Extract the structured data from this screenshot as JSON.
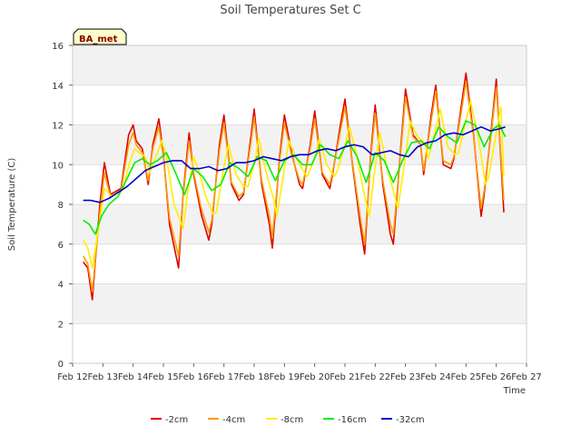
{
  "chart_data": {
    "type": "line",
    "title": "Soil Temperatures Set C",
    "badge": "BA_met",
    "xlabel": "Time",
    "ylabel": "Soil Temperature (C)",
    "ylim": [
      0,
      16
    ],
    "yticks": [
      0,
      2,
      4,
      6,
      8,
      10,
      12,
      14,
      16
    ],
    "xlim": [
      12,
      27
    ],
    "xticks": [
      {
        "value": 12,
        "label": "Feb 12"
      },
      {
        "value": 13,
        "label": "Feb 13"
      },
      {
        "value": 14,
        "label": "Feb 14"
      },
      {
        "value": 15,
        "label": "Feb 15"
      },
      {
        "value": 16,
        "label": "Feb 16"
      },
      {
        "value": 17,
        "label": "Feb 17"
      },
      {
        "value": 18,
        "label": "Feb 18"
      },
      {
        "value": 19,
        "label": "Feb 19"
      },
      {
        "value": 20,
        "label": "Feb 20"
      },
      {
        "value": 21,
        "label": "Feb 21"
      },
      {
        "value": 22,
        "label": "Feb 22"
      },
      {
        "value": 23,
        "label": "Feb 23"
      },
      {
        "value": 24,
        "label": "Feb 24"
      },
      {
        "value": 25,
        "label": "Feb 25"
      },
      {
        "value": 26,
        "label": "Feb 26"
      },
      {
        "value": 27,
        "label": "Feb 27"
      }
    ],
    "grid": "horizontal bands",
    "legend_position": "bottom",
    "series": [
      {
        "name": "-2cm",
        "color": "#dd0000",
        "x": [
          12.35,
          12.5,
          12.65,
          12.9,
          13.05,
          13.25,
          13.6,
          13.85,
          14.0,
          14.1,
          14.3,
          14.5,
          14.65,
          14.85,
          15.0,
          15.2,
          15.5,
          15.65,
          15.85,
          16.0,
          16.25,
          16.5,
          16.6,
          16.85,
          17.0,
          17.25,
          17.5,
          17.65,
          17.9,
          18.0,
          18.25,
          18.5,
          18.6,
          18.85,
          19.0,
          19.25,
          19.5,
          19.6,
          19.85,
          20.0,
          20.25,
          20.5,
          20.6,
          20.85,
          21.0,
          21.25,
          21.5,
          21.65,
          21.85,
          22.0,
          22.25,
          22.5,
          22.6,
          22.85,
          23.0,
          23.25,
          23.5,
          23.6,
          23.85,
          24.0,
          24.25,
          24.5,
          24.6,
          24.85,
          25.0,
          25.25,
          25.5,
          25.6,
          25.85,
          26.0,
          26.25
        ],
        "y": [
          5.1,
          4.8,
          3.2,
          8.0,
          10.1,
          8.5,
          8.8,
          11.5,
          12.0,
          11.2,
          10.8,
          9.0,
          11.0,
          12.3,
          10.5,
          7.0,
          4.8,
          8.5,
          11.6,
          9.5,
          7.5,
          6.2,
          7.0,
          11.0,
          12.5,
          9.0,
          8.2,
          8.5,
          11.5,
          12.8,
          9.0,
          7.0,
          5.8,
          10.5,
          12.5,
          10.5,
          9.0,
          8.8,
          11.0,
          12.7,
          9.5,
          8.8,
          9.6,
          12.0,
          13.3,
          10.0,
          7.0,
          5.5,
          10.5,
          13.0,
          9.0,
          6.5,
          6.0,
          11.0,
          13.8,
          11.5,
          11.0,
          9.5,
          12.5,
          14.0,
          10.0,
          9.8,
          10.3,
          13.0,
          14.6,
          11.5,
          7.4,
          8.5,
          12.0,
          14.3,
          7.6
        ]
      },
      {
        "name": "-4cm",
        "color": "#ff9900",
        "x": [
          12.35,
          12.5,
          12.65,
          12.9,
          13.05,
          13.25,
          13.6,
          13.85,
          14.0,
          14.1,
          14.3,
          14.5,
          14.65,
          14.85,
          15.0,
          15.2,
          15.5,
          15.65,
          15.85,
          16.0,
          16.25,
          16.5,
          16.6,
          16.85,
          17.0,
          17.25,
          17.5,
          17.65,
          17.9,
          18.0,
          18.25,
          18.5,
          18.6,
          18.85,
          19.0,
          19.25,
          19.5,
          19.6,
          19.85,
          20.0,
          20.25,
          20.5,
          20.6,
          20.85,
          21.0,
          21.25,
          21.5,
          21.65,
          21.85,
          22.0,
          22.25,
          22.5,
          22.6,
          22.85,
          23.0,
          23.25,
          23.5,
          23.6,
          23.85,
          24.0,
          24.25,
          24.5,
          24.6,
          24.85,
          25.0,
          25.25,
          25.5,
          25.6,
          25.85,
          26.0,
          26.25
        ],
        "y": [
          5.4,
          5.0,
          3.6,
          7.6,
          9.6,
          8.4,
          8.7,
          11.0,
          11.6,
          11.0,
          10.6,
          9.2,
          10.8,
          11.9,
          10.4,
          7.3,
          5.4,
          8.4,
          11.2,
          9.6,
          7.8,
          6.6,
          7.2,
          10.7,
          12.1,
          9.1,
          8.4,
          8.6,
          11.2,
          12.4,
          9.2,
          7.4,
          6.3,
          10.3,
          12.1,
          10.4,
          9.2,
          9.0,
          10.8,
          12.3,
          9.6,
          9.0,
          9.7,
          11.7,
          12.9,
          10.1,
          7.4,
          6.0,
          10.3,
          12.6,
          9.2,
          7.0,
          6.5,
          10.8,
          13.4,
          11.4,
          11.0,
          9.7,
          12.2,
          13.7,
          10.2,
          10.0,
          10.4,
          12.7,
          14.2,
          11.4,
          7.8,
          8.7,
          11.8,
          13.9,
          8.2
        ]
      },
      {
        "name": "-8cm",
        "color": "#ffee00",
        "x": [
          12.35,
          12.5,
          12.65,
          12.9,
          13.05,
          13.3,
          13.65,
          13.9,
          14.05,
          14.2,
          14.4,
          14.55,
          14.75,
          14.95,
          15.1,
          15.35,
          15.65,
          15.8,
          16.0,
          16.15,
          16.4,
          16.65,
          16.75,
          17.0,
          17.15,
          17.4,
          17.65,
          17.8,
          18.05,
          18.15,
          18.4,
          18.65,
          18.75,
          19.0,
          19.15,
          19.4,
          19.65,
          19.75,
          20.0,
          20.15,
          20.4,
          20.65,
          20.75,
          21.0,
          21.15,
          21.4,
          21.65,
          21.8,
          22.0,
          22.15,
          22.4,
          22.65,
          22.75,
          23.0,
          23.15,
          23.4,
          23.65,
          23.75,
          24.0,
          24.15,
          24.4,
          24.65,
          24.75,
          25.0,
          25.15,
          25.4,
          25.65,
          25.75,
          26.0,
          26.15,
          26.25
        ],
        "y": [
          6.2,
          5.8,
          4.8,
          7.2,
          8.8,
          8.4,
          8.7,
          10.2,
          10.8,
          10.6,
          10.4,
          9.6,
          10.4,
          11.2,
          10.4,
          8.0,
          6.8,
          8.6,
          10.4,
          9.8,
          8.4,
          7.5,
          7.6,
          9.9,
          11.0,
          9.5,
          8.9,
          8.9,
          10.4,
          11.3,
          9.6,
          8.2,
          7.4,
          9.8,
          11.2,
          10.3,
          9.6,
          9.4,
          10.3,
          11.3,
          10.0,
          9.4,
          9.7,
          11.0,
          11.9,
          10.4,
          8.4,
          7.4,
          9.9,
          11.6,
          9.8,
          8.4,
          7.8,
          10.4,
          12.2,
          11.4,
          11.1,
          10.3,
          11.8,
          12.8,
          10.9,
          10.5,
          10.6,
          12.2,
          13.2,
          11.4,
          9.0,
          9.4,
          11.6,
          12.9,
          9.4
        ]
      },
      {
        "name": "-16cm",
        "color": "#00ee00",
        "x": [
          12.35,
          12.55,
          12.75,
          12.95,
          13.2,
          13.5,
          13.8,
          14.05,
          14.3,
          14.55,
          14.8,
          15.1,
          15.4,
          15.7,
          16.0,
          16.3,
          16.6,
          16.9,
          17.2,
          17.5,
          17.8,
          18.1,
          18.4,
          18.7,
          19.0,
          19.3,
          19.6,
          19.9,
          20.2,
          20.5,
          20.8,
          21.1,
          21.4,
          21.7,
          22.0,
          22.3,
          22.6,
          22.9,
          23.2,
          23.5,
          23.8,
          24.1,
          24.4,
          24.7,
          25.0,
          25.3,
          25.6,
          25.9,
          26.1,
          26.3
        ],
        "y": [
          7.2,
          7.0,
          6.5,
          7.4,
          8.0,
          8.4,
          9.3,
          10.1,
          10.3,
          10.0,
          10.2,
          10.6,
          9.6,
          8.5,
          9.8,
          9.4,
          8.7,
          9.0,
          10.1,
          9.8,
          9.4,
          10.4,
          10.2,
          9.2,
          10.2,
          10.5,
          10.0,
          10.0,
          11.0,
          10.5,
          10.3,
          11.2,
          10.4,
          9.1,
          10.6,
          10.2,
          9.1,
          10.2,
          11.1,
          11.2,
          10.8,
          11.9,
          11.4,
          11.1,
          12.2,
          12.0,
          10.9,
          11.8,
          12.0,
          11.4
        ]
      },
      {
        "name": "-32cm",
        "color": "#0000cc",
        "x": [
          12.35,
          12.6,
          12.9,
          13.2,
          13.5,
          13.8,
          14.1,
          14.4,
          14.7,
          15.0,
          15.3,
          15.6,
          15.9,
          16.2,
          16.5,
          16.8,
          17.1,
          17.4,
          17.7,
          18.0,
          18.3,
          18.6,
          18.9,
          19.2,
          19.5,
          19.8,
          20.1,
          20.4,
          20.7,
          21.0,
          21.3,
          21.6,
          21.9,
          22.2,
          22.5,
          22.8,
          23.1,
          23.4,
          23.7,
          24.0,
          24.3,
          24.6,
          24.9,
          25.2,
          25.5,
          25.8,
          26.1,
          26.3
        ],
        "y": [
          8.2,
          8.2,
          8.1,
          8.3,
          8.6,
          8.9,
          9.3,
          9.7,
          9.9,
          10.1,
          10.2,
          10.2,
          9.8,
          9.8,
          9.9,
          9.7,
          9.8,
          10.1,
          10.1,
          10.2,
          10.4,
          10.3,
          10.2,
          10.4,
          10.5,
          10.5,
          10.7,
          10.8,
          10.7,
          10.9,
          11.0,
          10.9,
          10.5,
          10.6,
          10.7,
          10.5,
          10.4,
          10.9,
          11.1,
          11.2,
          11.5,
          11.6,
          11.5,
          11.7,
          11.9,
          11.7,
          11.8,
          11.9
        ]
      }
    ]
  }
}
